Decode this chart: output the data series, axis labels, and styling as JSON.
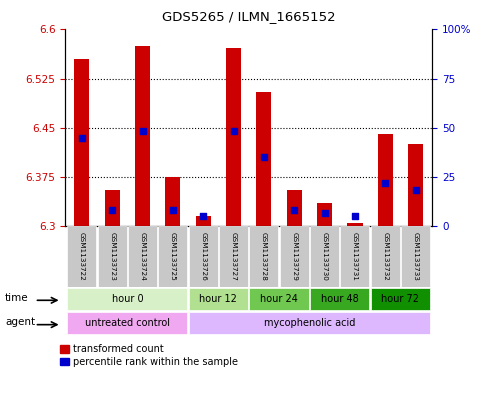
{
  "title": "GDS5265 / ILMN_1665152",
  "samples": [
    "GSM1133722",
    "GSM1133723",
    "GSM1133724",
    "GSM1133725",
    "GSM1133726",
    "GSM1133727",
    "GSM1133728",
    "GSM1133729",
    "GSM1133730",
    "GSM1133731",
    "GSM1133732",
    "GSM1133733"
  ],
  "bar_values": [
    6.555,
    6.355,
    6.575,
    6.375,
    6.315,
    6.572,
    6.505,
    6.355,
    6.335,
    6.305,
    6.44,
    6.425
  ],
  "bar_base": 6.3,
  "blue_dot_values": [
    6.435,
    6.325,
    6.445,
    6.325,
    6.315,
    6.445,
    6.405,
    6.325,
    6.32,
    6.315,
    6.365,
    6.355
  ],
  "ylim_left": [
    6.3,
    6.6
  ],
  "ylim_right": [
    0,
    100
  ],
  "yticks_left": [
    6.3,
    6.375,
    6.45,
    6.525,
    6.6
  ],
  "yticks_right": [
    0,
    25,
    50,
    75,
    100
  ],
  "ytick_labels_left": [
    "6.3",
    "6.375",
    "6.45",
    "6.525",
    "6.6"
  ],
  "ytick_labels_right": [
    "0",
    "25",
    "50",
    "75",
    "100%"
  ],
  "bar_color": "#cc0000",
  "blue_dot_color": "#0000cc",
  "time_groups": [
    {
      "label": "hour 0",
      "indices": [
        0,
        1,
        2,
        3
      ],
      "color": "#d8f0c8"
    },
    {
      "label": "hour 12",
      "indices": [
        4,
        5
      ],
      "color": "#b0e090"
    },
    {
      "label": "hour 24",
      "indices": [
        6,
        7
      ],
      "color": "#70c850"
    },
    {
      "label": "hour 48",
      "indices": [
        8,
        9
      ],
      "color": "#38a820"
    },
    {
      "label": "hour 72",
      "indices": [
        10,
        11
      ],
      "color": "#109000"
    }
  ],
  "agent_groups": [
    {
      "label": "untreated control",
      "indices": [
        0,
        1,
        2,
        3
      ],
      "color": "#f0a8f0"
    },
    {
      "label": "mycophenolic acid",
      "indices": [
        4,
        5,
        6,
        7,
        8,
        9,
        10,
        11
      ],
      "color": "#ddb8ff"
    }
  ],
  "legend_bar_color": "#cc0000",
  "legend_dot_color": "#0000cc",
  "legend_bar_label": "transformed count",
  "legend_dot_label": "percentile rank within the sample",
  "bar_width": 0.5,
  "left_tick_color": "#cc0000",
  "right_tick_color": "#0000cc",
  "sample_box_color": "#c8c8c8",
  "grid_dotted_color": "#555555"
}
